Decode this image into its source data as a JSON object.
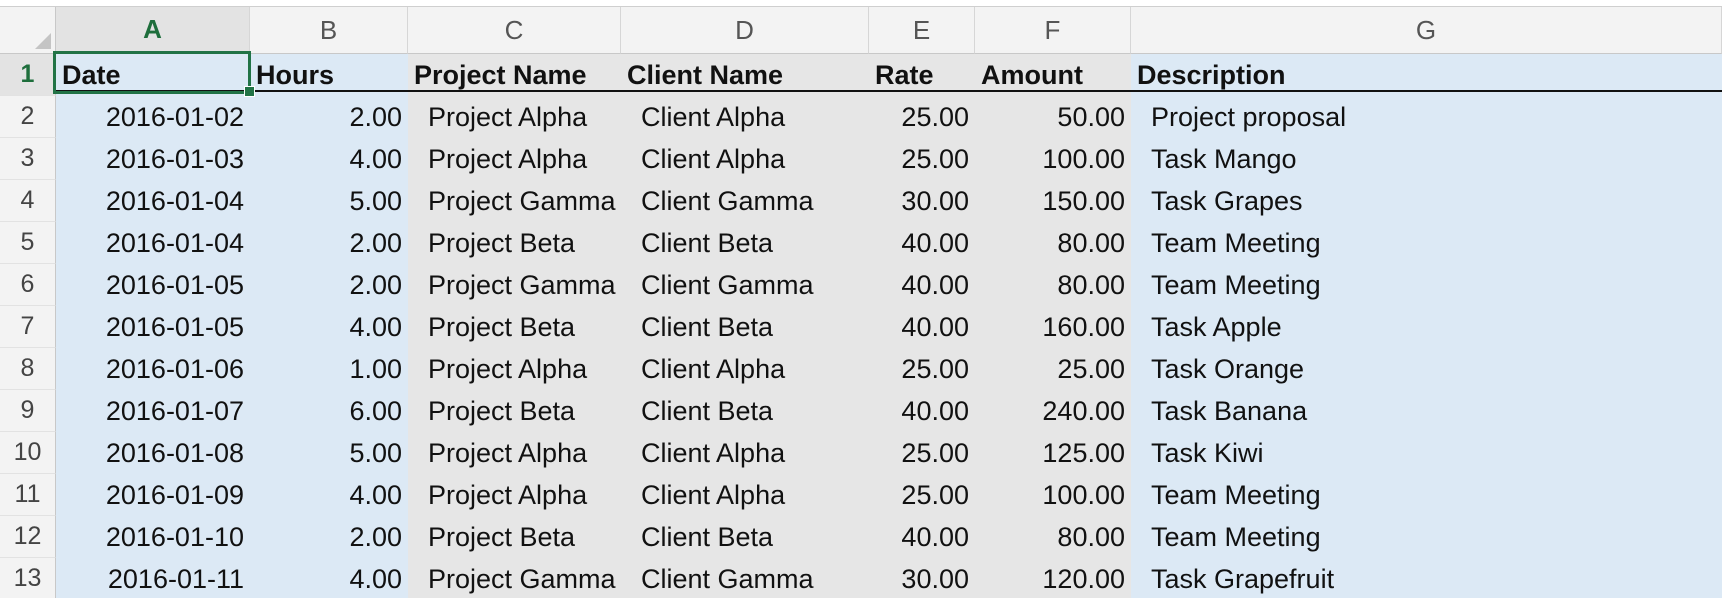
{
  "spreadsheet": {
    "columns": [
      "A",
      "B",
      "C",
      "D",
      "E",
      "F",
      "G"
    ],
    "active_column": "A",
    "active_row": "1",
    "row_numbers": [
      "1",
      "2",
      "3",
      "4",
      "5",
      "6",
      "7",
      "8",
      "9",
      "10",
      "11",
      "12",
      "13"
    ],
    "header_row": [
      "Date",
      "Hours",
      "Project Name",
      "Client Name",
      "Rate",
      "Amount",
      "Description"
    ],
    "rows": [
      [
        "2016-01-02",
        "2.00",
        "Project Alpha",
        "Client Alpha",
        "25.00",
        "50.00",
        "Project proposal"
      ],
      [
        "2016-01-03",
        "4.00",
        "Project Alpha",
        "Client Alpha",
        "25.00",
        "100.00",
        "Task Mango"
      ],
      [
        "2016-01-04",
        "5.00",
        "Project Gamma",
        "Client Gamma",
        "30.00",
        "150.00",
        "Task Grapes"
      ],
      [
        "2016-01-04",
        "2.00",
        "Project Beta",
        "Client Beta",
        "40.00",
        "80.00",
        "Team Meeting"
      ],
      [
        "2016-01-05",
        "2.00",
        "Project Gamma",
        "Client Gamma",
        "40.00",
        "80.00",
        "Team Meeting"
      ],
      [
        "2016-01-05",
        "4.00",
        "Project Beta",
        "Client Beta",
        "40.00",
        "160.00",
        "Task Apple"
      ],
      [
        "2016-01-06",
        "1.00",
        "Project Alpha",
        "Client Alpha",
        "25.00",
        "25.00",
        "Task Orange"
      ],
      [
        "2016-01-07",
        "6.00",
        "Project Beta",
        "Client Beta",
        "40.00",
        "240.00",
        "Task Banana"
      ],
      [
        "2016-01-08",
        "5.00",
        "Project Alpha",
        "Client Alpha",
        "25.00",
        "125.00",
        "Task Kiwi"
      ],
      [
        "2016-01-09",
        "4.00",
        "Project Alpha",
        "Client Alpha",
        "25.00",
        "100.00",
        "Team Meeting"
      ],
      [
        "2016-01-10",
        "2.00",
        "Project Beta",
        "Client Beta",
        "40.00",
        "80.00",
        "Team Meeting"
      ],
      [
        "2016-01-11",
        "4.00",
        "Project Gamma",
        "Client Gamma",
        "30.00",
        "120.00",
        "Task Grapefruit"
      ]
    ],
    "colors": {
      "selection": "#217346",
      "banded_blue": "#dce9f5",
      "banded_grey": "#e6e6e6"
    }
  }
}
